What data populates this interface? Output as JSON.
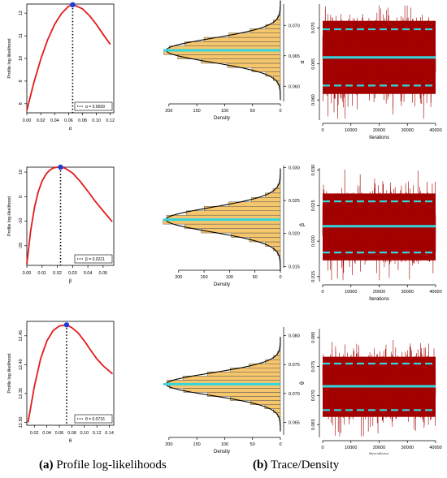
{
  "captions": {
    "a": {
      "tag": "(a)",
      "text": "Profile log-likelihoods"
    },
    "b": {
      "tag": "(b)",
      "text": "Trace/Density"
    }
  },
  "colors": {
    "curve": "#e31a1c",
    "point": "#1f3bd6",
    "hist_fill": "#f6c66d",
    "hist_line": "#555555",
    "mean_line": "#33d6dc",
    "trace": "#a30000"
  },
  "chart_data": [
    {
      "type": "line",
      "panel": "profile-alpha",
      "ylabel": "Profile log-likelihood",
      "xlabel": "α",
      "xlim": [
        0,
        0.125
      ],
      "ylim": [
        7.6,
        12.4
      ],
      "xticks": [
        0.0,
        0.02,
        0.04,
        0.06,
        0.08,
        0.1,
        0.12
      ],
      "xtick_labels": [
        "0.00",
        "0.02",
        "0.04",
        "0.06",
        "0.08",
        "0.10",
        "0.12"
      ],
      "yticks": [
        8,
        9,
        10,
        11,
        12
      ],
      "ytick_labels": [
        "8",
        "9",
        "10",
        "11",
        "12"
      ],
      "x": [
        0.0,
        0.01,
        0.02,
        0.03,
        0.04,
        0.05,
        0.06,
        0.0659,
        0.07,
        0.08,
        0.09,
        0.1,
        0.11,
        0.12
      ],
      "y": [
        7.7,
        8.92,
        9.96,
        10.83,
        11.51,
        11.99,
        12.3,
        12.37,
        12.33,
        12.19,
        11.89,
        11.5,
        11.05,
        10.62
      ],
      "mle": {
        "x": 0.0659,
        "y": 12.37
      },
      "legend": {
        "symbol": "α",
        "label": "α = 0.0659"
      }
    },
    {
      "type": "histogram",
      "panel": "density-alpha",
      "orientation": "horizontal",
      "xlabel": "Density",
      "xlim": [
        210,
        0
      ],
      "xticks": [
        200,
        150,
        100,
        50,
        0
      ],
      "xtick_labels": [
        "200",
        "150",
        "100",
        "50",
        "0"
      ],
      "ylim": [
        0.0575,
        0.0735
      ],
      "yticks": [
        0.06,
        0.065,
        0.07
      ],
      "ytick_labels": [
        "0.060",
        "0.065",
        "0.070"
      ],
      "mean": 0.0659,
      "sd": 0.00195,
      "peak": 205,
      "bins": 22
    },
    {
      "type": "trace",
      "panel": "trace-alpha",
      "xlabel": "Iterations",
      "ylabel": "α",
      "xlim": [
        0,
        40000
      ],
      "ylim": [
        0.0572,
        0.0733
      ],
      "xticks": [
        0,
        10000,
        20000,
        30000,
        40000
      ],
      "xtick_labels": [
        "0",
        "10000",
        "20000",
        "30000",
        "40000"
      ],
      "yticks": [
        0.06,
        0.065,
        0.07
      ],
      "ytick_labels": [
        "0.060",
        "0.065",
        "0.070"
      ],
      "mean": 0.0659,
      "lower": 0.062,
      "upper": 0.0698,
      "sd": 0.00195
    },
    {
      "type": "line",
      "panel": "profile-beta",
      "ylabel": "Profile log-likelihood",
      "xlabel": "β",
      "xlim": [
        0,
        0.057
      ],
      "ylim": [
        -28,
        12
      ],
      "xticks": [
        0.0,
        0.01,
        0.02,
        0.03,
        0.04,
        0.05
      ],
      "xtick_labels": [
        "0.00",
        "0.01",
        "0.02",
        "0.03",
        "0.04",
        "0.05"
      ],
      "yticks": [
        -20,
        -10,
        0,
        10
      ],
      "ytick_labels": [
        "-20",
        "-10",
        "0",
        "10"
      ],
      "x": [
        0.0,
        0.0025,
        0.005,
        0.0075,
        0.01,
        0.0125,
        0.015,
        0.0175,
        0.02,
        0.0221,
        0.025,
        0.03,
        0.035,
        0.04,
        0.045,
        0.05,
        0.056
      ],
      "y": [
        -27.5,
        -14.0,
        -4.5,
        2.0,
        6.3,
        9.1,
        10.8,
        11.7,
        12.0,
        12.0,
        11.6,
        9.6,
        6.2,
        2.2,
        -2.0,
        -5.8,
        -10.2
      ],
      "mle": {
        "x": 0.0221,
        "y": 12.0
      },
      "legend": {
        "symbol": "β",
        "label": "β = 0.0221"
      }
    },
    {
      "type": "histogram",
      "panel": "density-beta",
      "orientation": "horizontal",
      "xlabel": "Density",
      "xlim": [
        230,
        0
      ],
      "xticks": [
        200,
        150,
        100,
        50,
        0
      ],
      "xtick_labels": [
        "200",
        "150",
        "100",
        "50",
        "0"
      ],
      "ylim": [
        0.0148,
        0.0303
      ],
      "yticks": [
        0.015,
        0.02,
        0.025,
        0.03
      ],
      "ytick_labels": [
        "0.015",
        "0.020",
        "0.025",
        "0.030"
      ],
      "mean": 0.0221,
      "sd": 0.00185,
      "peak": 225,
      "bins": 22
    },
    {
      "type": "trace",
      "panel": "trace-beta",
      "xlabel": "Iterations",
      "ylabel": "β",
      "xlim": [
        0,
        40000
      ],
      "ylim": [
        0.0143,
        0.0303
      ],
      "xticks": [
        0,
        10000,
        20000,
        30000,
        40000
      ],
      "xtick_labels": [
        "0",
        "10000",
        "20000",
        "30000",
        "40000"
      ],
      "yticks": [
        0.015,
        0.02,
        0.025,
        0.03
      ],
      "ytick_labels": [
        "0.015",
        "0.020",
        "0.025",
        "0.030"
      ],
      "mean": 0.0221,
      "lower": 0.0184,
      "upper": 0.0256,
      "sd": 0.00185
    },
    {
      "type": "line",
      "panel": "profile-theta",
      "ylabel": "Profile log-likelihood",
      "xlabel": "θ",
      "xlim": [
        0.008,
        0.147
      ],
      "ylim": [
        12.295,
        12.475
      ],
      "xticks": [
        0.02,
        0.04,
        0.06,
        0.08,
        0.1,
        0.12,
        0.14
      ],
      "xtick_labels": [
        "0.02",
        "0.04",
        "0.06",
        "0.08",
        "0.10",
        "0.12",
        "0.14"
      ],
      "yticks": [
        12.3,
        12.35,
        12.4,
        12.45
      ],
      "ytick_labels": [
        "12.30",
        "12.35",
        "12.40",
        "12.45"
      ],
      "x": [
        0.01,
        0.02,
        0.03,
        0.04,
        0.05,
        0.06,
        0.0716,
        0.08,
        0.09,
        0.1,
        0.11,
        0.12,
        0.13,
        0.145
      ],
      "y": [
        12.3,
        12.362,
        12.41,
        12.441,
        12.459,
        12.467,
        12.469,
        12.464,
        12.455,
        12.441,
        12.425,
        12.41,
        12.398,
        12.384
      ],
      "mle": {
        "x": 0.0716,
        "y": 12.469
      },
      "legend": {
        "symbol": "θ",
        "label": "θ = 0.0716"
      }
    },
    {
      "type": "histogram",
      "panel": "density-theta",
      "orientation": "horizontal",
      "xlabel": "Density",
      "xlim": [
        210,
        0
      ],
      "xticks": [
        200,
        150,
        100,
        50,
        0
      ],
      "xtick_labels": [
        "200",
        "150",
        "100",
        "50",
        "0"
      ],
      "ylim": [
        0.0628,
        0.0815
      ],
      "yticks": [
        0.065,
        0.07,
        0.075,
        0.08
      ],
      "ytick_labels": [
        "0.065",
        "0.070",
        "0.075",
        "0.080"
      ],
      "mean": 0.0716,
      "sd": 0.00195,
      "peak": 205,
      "bins": 22
    },
    {
      "type": "trace",
      "panel": "trace-theta",
      "xlabel": "Iterations",
      "ylabel": "θ",
      "xlim": [
        0,
        40000
      ],
      "ylim": [
        0.0628,
        0.0815
      ],
      "xticks": [
        0,
        10000,
        20000,
        30000,
        40000
      ],
      "xtick_labels": [
        "0",
        "10000",
        "20000",
        "30000",
        "40000"
      ],
      "yticks": [
        0.065,
        0.07,
        0.075,
        0.08
      ],
      "ytick_labels": [
        "0.065",
        "0.070",
        "0.075",
        "0.080"
      ],
      "mean": 0.0716,
      "lower": 0.0675,
      "upper": 0.0755,
      "sd": 0.00195
    }
  ]
}
